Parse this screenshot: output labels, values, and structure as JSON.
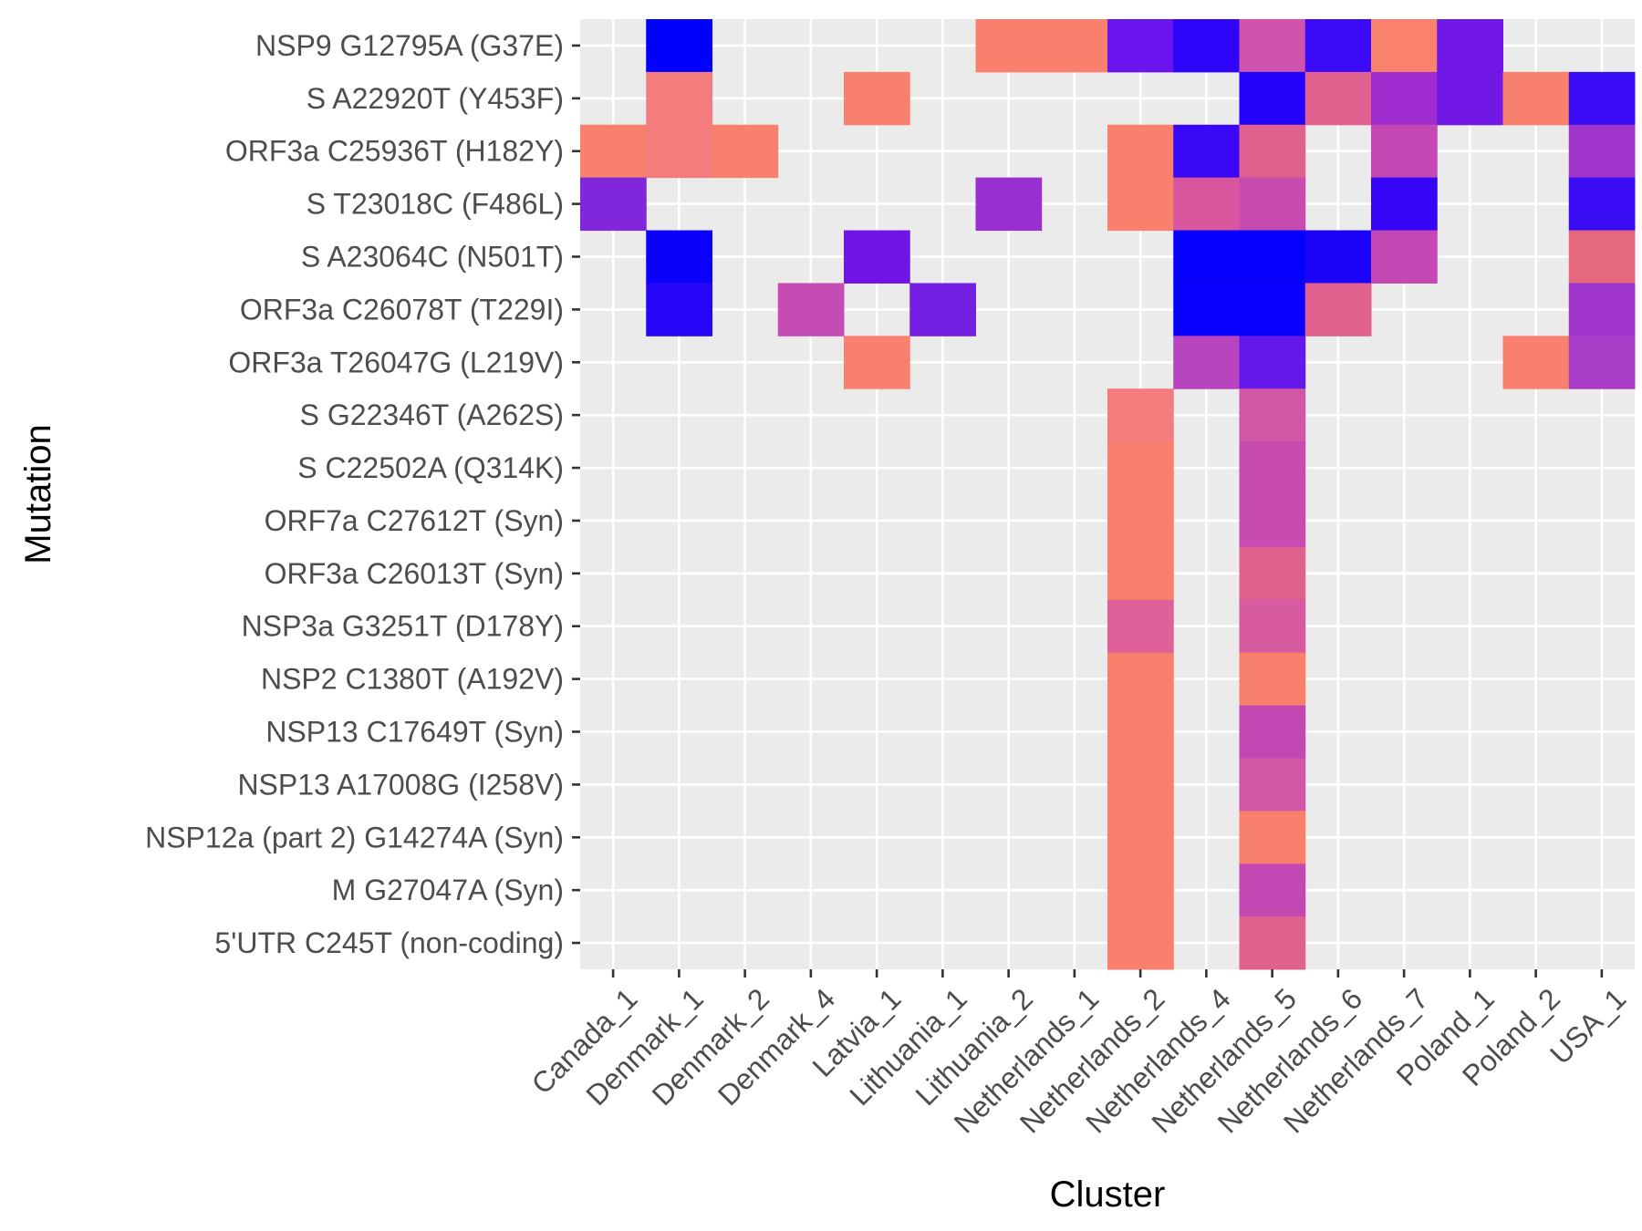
{
  "chart_data": {
    "type": "heatmap",
    "xlabel": "Cluster",
    "ylabel": "Mutation",
    "x_categories": [
      "Canada_1",
      "Denmark_1",
      "Denmark_2",
      "Denmark_4",
      "Latvia_1",
      "Lithuania_1",
      "Lithuania_2",
      "Netherlands_1",
      "Netherlands_2",
      "Netherlands_4",
      "Netherlands_5",
      "Netherlands_6",
      "Netherlands_7",
      "Poland_1",
      "Poland_2",
      "USA_1"
    ],
    "y_categories": [
      "NSP9 G12795A (G37E)",
      "S A22920T (Y453F)",
      "ORF3a C25936T (H182Y)",
      "S T23018C (F486L)",
      "S A23064C (N501T)",
      "ORF3a C26078T (T229I)",
      "ORF3a T26047G (L219V)",
      "S G22346T (A262S)",
      "S C22502A (Q314K)",
      "ORF7a C27612T (Syn)",
      "ORF3a C26013T (Syn)",
      "NSP3a G3251T (D178Y)",
      "NSP2 C1380T (A192V)",
      "NSP13 C17649T (Syn)",
      "NSP13 A17008G (I258V)",
      "NSP12a (part 2) G14274A (Syn)",
      "M G27047A (Syn)",
      "5'UTR C245T (non-coding)"
    ],
    "cells": [
      {
        "x": "Denmark_1",
        "y": "NSP9 G12795A (G37E)",
        "color": "#0000fe"
      },
      {
        "x": "Lithuania_2",
        "y": "NSP9 G12795A (G37E)",
        "color": "#fa806e"
      },
      {
        "x": "Netherlands_1",
        "y": "NSP9 G12795A (G37E)",
        "color": "#fa806e"
      },
      {
        "x": "Netherlands_2",
        "y": "NSP9 G12795A (G37E)",
        "color": "#6b14ee"
      },
      {
        "x": "Netherlands_4",
        "y": "NSP9 G12795A (G37E)",
        "color": "#2e05fa"
      },
      {
        "x": "Netherlands_5",
        "y": "NSP9 G12795A (G37E)",
        "color": "#cf52ab"
      },
      {
        "x": "Netherlands_6",
        "y": "NSP9 G12795A (G37E)",
        "color": "#3b0af8"
      },
      {
        "x": "Netherlands_7",
        "y": "NSP9 G12795A (G37E)",
        "color": "#fa826c"
      },
      {
        "x": "Poland_1",
        "y": "NSP9 G12795A (G37E)",
        "color": "#7118e6"
      },
      {
        "x": "Denmark_1",
        "y": "S A22920T (Y453F)",
        "color": "#f47c7c"
      },
      {
        "x": "Latvia_1",
        "y": "S A22920T (Y453F)",
        "color": "#fa806e"
      },
      {
        "x": "Netherlands_5",
        "y": "S A22920T (Y453F)",
        "color": "#2402fb"
      },
      {
        "x": "Netherlands_6",
        "y": "S A22920T (Y453F)",
        "color": "#e0608e"
      },
      {
        "x": "Netherlands_7",
        "y": "S A22920T (Y453F)",
        "color": "#a02dcf"
      },
      {
        "x": "Poland_1",
        "y": "S A22920T (Y453F)",
        "color": "#7118e6"
      },
      {
        "x": "Poland_2",
        "y": "S A22920T (Y453F)",
        "color": "#fa806e"
      },
      {
        "x": "USA_1",
        "y": "S A22920T (Y453F)",
        "color": "#3a0cf5"
      },
      {
        "x": "Canada_1",
        "y": "ORF3a C25936T (H182Y)",
        "color": "#fa806e"
      },
      {
        "x": "Denmark_1",
        "y": "ORF3a C25936T (H182Y)",
        "color": "#f47c7c"
      },
      {
        "x": "Denmark_2",
        "y": "ORF3a C25936T (H182Y)",
        "color": "#fa806e"
      },
      {
        "x": "Netherlands_2",
        "y": "ORF3a C25936T (H182Y)",
        "color": "#fa806e"
      },
      {
        "x": "Netherlands_4",
        "y": "ORF3a C25936T (H182Y)",
        "color": "#3a08f6"
      },
      {
        "x": "Netherlands_5",
        "y": "ORF3a C25936T (H182Y)",
        "color": "#e0608e"
      },
      {
        "x": "Netherlands_7",
        "y": "ORF3a C25936T (H182Y)",
        "color": "#c448b4"
      },
      {
        "x": "USA_1",
        "y": "ORF3a C25936T (H182Y)",
        "color": "#a035cc"
      },
      {
        "x": "Canada_1",
        "y": "S T23018C (F486L)",
        "color": "#8026db"
      },
      {
        "x": "Lithuania_2",
        "y": "S T23018C (F486L)",
        "color": "#9a2fd0"
      },
      {
        "x": "Netherlands_2",
        "y": "S T23018C (F486L)",
        "color": "#fa806e"
      },
      {
        "x": "Netherlands_4",
        "y": "S T23018C (F486L)",
        "color": "#d9559e"
      },
      {
        "x": "Netherlands_5",
        "y": "S T23018C (F486L)",
        "color": "#c84cb0"
      },
      {
        "x": "Netherlands_7",
        "y": "S T23018C (F486L)",
        "color": "#3605f7"
      },
      {
        "x": "USA_1",
        "y": "S T23018C (F486L)",
        "color": "#3a0cf5"
      },
      {
        "x": "Denmark_1",
        "y": "S A23064C (N501T)",
        "color": "#0a00fb"
      },
      {
        "x": "Latvia_1",
        "y": "S A23064C (N501T)",
        "color": "#7015e6"
      },
      {
        "x": "Netherlands_4",
        "y": "S A23064C (N501T)",
        "color": "#0500fd"
      },
      {
        "x": "Netherlands_5",
        "y": "S A23064C (N501T)",
        "color": "#0500fd"
      },
      {
        "x": "Netherlands_6",
        "y": "S A23064C (N501T)",
        "color": "#1a03f8"
      },
      {
        "x": "Netherlands_7",
        "y": "S A23064C (N501T)",
        "color": "#c448b4"
      },
      {
        "x": "USA_1",
        "y": "S A23064C (N501T)",
        "color": "#e6687e"
      },
      {
        "x": "Denmark_1",
        "y": "ORF3a C26078T (T229I)",
        "color": "#2605f8"
      },
      {
        "x": "Denmark_4",
        "y": "ORF3a C26078T (T229I)",
        "color": "#c44cb4"
      },
      {
        "x": "Lithuania_1",
        "y": "ORF3a C26078T (T229I)",
        "color": "#7420e2"
      },
      {
        "x": "Netherlands_4",
        "y": "ORF3a C26078T (T229I)",
        "color": "#0600fc"
      },
      {
        "x": "Netherlands_5",
        "y": "ORF3a C26078T (T229I)",
        "color": "#0600fc"
      },
      {
        "x": "Netherlands_6",
        "y": "ORF3a C26078T (T229I)",
        "color": "#e0608e"
      },
      {
        "x": "USA_1",
        "y": "ORF3a C26078T (T229I)",
        "color": "#a035cc"
      },
      {
        "x": "Latvia_1",
        "y": "ORF3a T26047G (L219V)",
        "color": "#fa806e"
      },
      {
        "x": "Netherlands_4",
        "y": "ORF3a T26047G (L219V)",
        "color": "#b844c0"
      },
      {
        "x": "Netherlands_5",
        "y": "ORF3a T26047G (L219V)",
        "color": "#6518ea"
      },
      {
        "x": "Poland_2",
        "y": "ORF3a T26047G (L219V)",
        "color": "#fa806e"
      },
      {
        "x": "USA_1",
        "y": "ORF3a T26047G (L219V)",
        "color": "#a83cc6"
      },
      {
        "x": "Netherlands_2",
        "y": "S G22346T (A262S)",
        "color": "#f47c7c"
      },
      {
        "x": "Netherlands_5",
        "y": "S G22346T (A262S)",
        "color": "#d256a6"
      },
      {
        "x": "Netherlands_2",
        "y": "S C22502A (Q314K)",
        "color": "#fa806e"
      },
      {
        "x": "Netherlands_5",
        "y": "S C22502A (Q314K)",
        "color": "#c84cb0"
      },
      {
        "x": "Netherlands_2",
        "y": "ORF7a C27612T (Syn)",
        "color": "#fa806e"
      },
      {
        "x": "Netherlands_5",
        "y": "ORF7a C27612T (Syn)",
        "color": "#c84cb0"
      },
      {
        "x": "Netherlands_2",
        "y": "ORF3a C26013T (Syn)",
        "color": "#fa806e"
      },
      {
        "x": "Netherlands_5",
        "y": "ORF3a C26013T (Syn)",
        "color": "#e0608e"
      },
      {
        "x": "Netherlands_2",
        "y": "NSP3a G3251T (D178Y)",
        "color": "#e0609a"
      },
      {
        "x": "Netherlands_5",
        "y": "NSP3a G3251T (D178Y)",
        "color": "#d85aa0"
      },
      {
        "x": "Netherlands_2",
        "y": "NSP2 C1380T (A192V)",
        "color": "#fa806e"
      },
      {
        "x": "Netherlands_5",
        "y": "NSP2 C1380T (A192V)",
        "color": "#fa806e"
      },
      {
        "x": "Netherlands_2",
        "y": "NSP13 C17649T (Syn)",
        "color": "#fa806e"
      },
      {
        "x": "Netherlands_5",
        "y": "NSP13 C17649T (Syn)",
        "color": "#c448b4"
      },
      {
        "x": "Netherlands_2",
        "y": "NSP13 A17008G (I258V)",
        "color": "#fa806e"
      },
      {
        "x": "Netherlands_5",
        "y": "NSP13 A17008G (I258V)",
        "color": "#d256a6"
      },
      {
        "x": "Netherlands_2",
        "y": "NSP12a (part 2) G14274A (Syn)",
        "color": "#fa806e"
      },
      {
        "x": "Netherlands_5",
        "y": "NSP12a (part 2) G14274A (Syn)",
        "color": "#fa806e"
      },
      {
        "x": "Netherlands_2",
        "y": "M G27047A (Syn)",
        "color": "#fa806e"
      },
      {
        "x": "Netherlands_5",
        "y": "M G27047A (Syn)",
        "color": "#c448b4"
      },
      {
        "x": "Netherlands_2",
        "y": "5'UTR C245T (non-coding)",
        "color": "#fa806e"
      },
      {
        "x": "Netherlands_5",
        "y": "5'UTR C245T (non-coding)",
        "color": "#e0608e"
      }
    ],
    "panel_background": "#ebebeb",
    "grid_color": "#ffffff",
    "grid": true,
    "legend": "none"
  }
}
